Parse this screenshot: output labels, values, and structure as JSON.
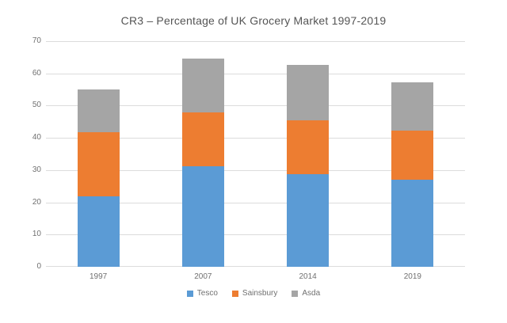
{
  "chart_data": {
    "type": "bar",
    "stacked": true,
    "title": "CR3 – Percentage of UK Grocery Market 1997-2019",
    "categories": [
      "1997",
      "2007",
      "2014",
      "2019"
    ],
    "series": [
      {
        "name": "Tesco",
        "color": "#5B9BD5",
        "values": [
          21.9,
          31.2,
          28.7,
          27.0
        ]
      },
      {
        "name": "Sainsbury",
        "color": "#ED7D31",
        "values": [
          19.8,
          16.6,
          16.7,
          15.3
        ]
      },
      {
        "name": "Asda",
        "color": "#A5A5A5",
        "values": [
          13.3,
          16.8,
          17.2,
          14.9
        ]
      }
    ],
    "totals": [
      55.0,
      64.6,
      62.6,
      57.2
    ],
    "ylim": [
      0,
      70
    ],
    "yticks": [
      0,
      10,
      20,
      30,
      40,
      50,
      60,
      70
    ],
    "grid": true,
    "legend_position": "bottom",
    "xlabel": "",
    "ylabel": ""
  },
  "colors": {
    "background": "#FFFFFF",
    "gridline": "#DCDCDC",
    "axis_text": "#707070",
    "title_text": "#555555"
  }
}
